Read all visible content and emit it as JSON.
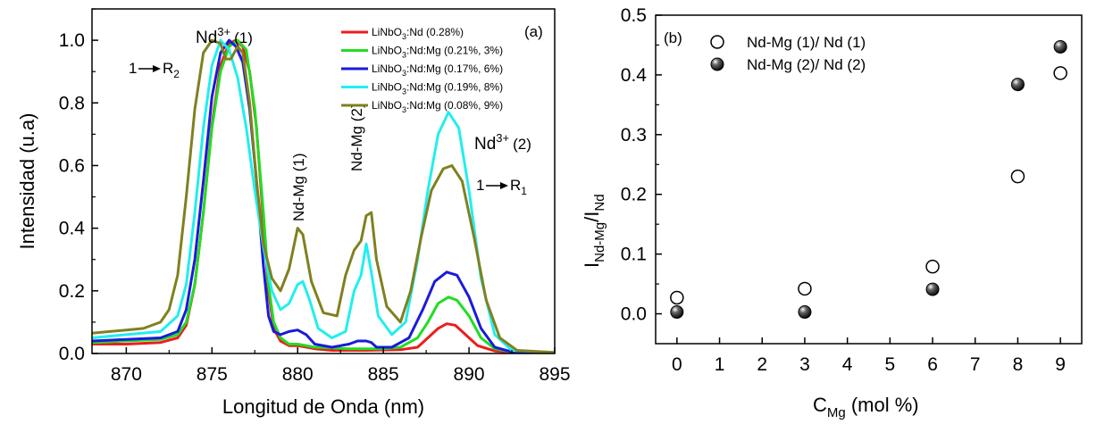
{
  "chart_data": [
    {
      "type": "line",
      "panel_label": "(a)",
      "xlabel": "Longitud de Onda (nm)",
      "ylabel": "Intensidad (u.a)",
      "xlim": [
        868,
        895
      ],
      "ylim": [
        0,
        1.1
      ],
      "x_ticks": [
        870,
        875,
        880,
        885,
        890,
        895
      ],
      "y_ticks": [
        "0.0",
        "0.2",
        "0.4",
        "0.6",
        "0.8",
        "1.0"
      ],
      "legend_position": "top-right",
      "annotations": {
        "nd1": "(1)",
        "nd2": "(2)",
        "ndmg1": "Nd-Mg (1)",
        "ndmg2": "Nd-Mg (2)",
        "r2": "R",
        "r2_sub": "2",
        "r1": "R",
        "r1_sub": "1",
        "one": "1"
      },
      "series": [
        {
          "name": "LiNbO3:Nd (0.28%)",
          "label_main": "LiNbO",
          "label_sub": "3",
          "label_rest": ":Nd (0.28%)",
          "color": "#ee1c1c",
          "points": [
            [
              868,
              0.03
            ],
            [
              870,
              0.03
            ],
            [
              872,
              0.035
            ],
            [
              873,
              0.05
            ],
            [
              873.5,
              0.09
            ],
            [
              874,
              0.22
            ],
            [
              874.5,
              0.45
            ],
            [
              875,
              0.73
            ],
            [
              875.5,
              0.92
            ],
            [
              876,
              0.99
            ],
            [
              876.4,
              1.0
            ],
            [
              876.8,
              0.98
            ],
            [
              877.2,
              0.9
            ],
            [
              877.6,
              0.72
            ],
            [
              878,
              0.42
            ],
            [
              878.3,
              0.2
            ],
            [
              878.6,
              0.08
            ],
            [
              879,
              0.04
            ],
            [
              879.5,
              0.025
            ],
            [
              880,
              0.025
            ],
            [
              881,
              0.015
            ],
            [
              882,
              0.01
            ],
            [
              884,
              0.01
            ],
            [
              886,
              0.012
            ],
            [
              887,
              0.02
            ],
            [
              887.6,
              0.05
            ],
            [
              888.2,
              0.08
            ],
            [
              888.7,
              0.095
            ],
            [
              889.2,
              0.09
            ],
            [
              889.8,
              0.06
            ],
            [
              890.5,
              0.025
            ],
            [
              891.5,
              0.008
            ],
            [
              892.5,
              0.003
            ],
            [
              895,
              0.002
            ]
          ]
        },
        {
          "name": "LiNbO3:Nd:Mg (0.21%, 3%)",
          "label_main": "LiNbO",
          "label_sub": "3",
          "label_rest": ":Nd:Mg (0.21%, 3%)",
          "color": "#22dd22",
          "points": [
            [
              868,
              0.035
            ],
            [
              870,
              0.04
            ],
            [
              872,
              0.045
            ],
            [
              873,
              0.06
            ],
            [
              873.5,
              0.1
            ],
            [
              874,
              0.22
            ],
            [
              874.5,
              0.45
            ],
            [
              875,
              0.72
            ],
            [
              875.5,
              0.9
            ],
            [
              876,
              0.98
            ],
            [
              876.5,
              1.0
            ],
            [
              877,
              0.97
            ],
            [
              877.5,
              0.78
            ],
            [
              878,
              0.45
            ],
            [
              878.3,
              0.22
            ],
            [
              878.6,
              0.1
            ],
            [
              879,
              0.05
            ],
            [
              879.5,
              0.03
            ],
            [
              880,
              0.03
            ],
            [
              881,
              0.02
            ],
            [
              883,
              0.015
            ],
            [
              885,
              0.015
            ],
            [
              886,
              0.02
            ],
            [
              887,
              0.05
            ],
            [
              887.6,
              0.1
            ],
            [
              888.2,
              0.16
            ],
            [
              888.8,
              0.18
            ],
            [
              889.3,
              0.17
            ],
            [
              890,
              0.12
            ],
            [
              890.7,
              0.05
            ],
            [
              891.5,
              0.015
            ],
            [
              892.5,
              0.005
            ],
            [
              895,
              0.002
            ]
          ]
        },
        {
          "name": "LiNbO3:Nd:Mg (0.17%, 6%)",
          "label_main": "LiNbO",
          "label_sub": "3",
          "label_rest": ":Nd:Mg (0.17%, 6%)",
          "color": "#1a1adc",
          "points": [
            [
              868,
              0.04
            ],
            [
              870,
              0.045
            ],
            [
              872,
              0.05
            ],
            [
              873,
              0.07
            ],
            [
              873.5,
              0.14
            ],
            [
              874,
              0.3
            ],
            [
              874.5,
              0.55
            ],
            [
              875,
              0.82
            ],
            [
              875.5,
              0.96
            ],
            [
              876,
              1.0
            ],
            [
              876.4,
              0.98
            ],
            [
              876.8,
              0.93
            ],
            [
              877.2,
              0.78
            ],
            [
              877.6,
              0.55
            ],
            [
              878,
              0.28
            ],
            [
              878.3,
              0.12
            ],
            [
              878.6,
              0.07
            ],
            [
              879,
              0.06
            ],
            [
              879.5,
              0.07
            ],
            [
              880,
              0.075
            ],
            [
              880.5,
              0.06
            ],
            [
              881,
              0.03
            ],
            [
              882,
              0.02
            ],
            [
              883,
              0.03
            ],
            [
              883.5,
              0.04
            ],
            [
              884,
              0.04
            ],
            [
              884.3,
              0.035
            ],
            [
              884.6,
              0.02
            ],
            [
              885.5,
              0.02
            ],
            [
              886.5,
              0.05
            ],
            [
              887.3,
              0.14
            ],
            [
              888,
              0.23
            ],
            [
              888.7,
              0.26
            ],
            [
              889.3,
              0.25
            ],
            [
              890,
              0.18
            ],
            [
              890.7,
              0.08
            ],
            [
              891.5,
              0.02
            ],
            [
              892.5,
              0.005
            ],
            [
              895,
              0.003
            ]
          ]
        },
        {
          "name": "LiNbO3:Nd:Mg (0.19%, 8%)",
          "label_main": "LiNbO",
          "label_sub": "3",
          "label_rest": ":Nd:Mg (0.19%, 8%)",
          "color": "#22eeee",
          "points": [
            [
              868,
              0.05
            ],
            [
              870,
              0.06
            ],
            [
              872,
              0.07
            ],
            [
              873,
              0.12
            ],
            [
              873.5,
              0.22
            ],
            [
              874,
              0.45
            ],
            [
              874.5,
              0.72
            ],
            [
              875,
              0.92
            ],
            [
              875.5,
              1.0
            ],
            [
              876,
              0.97
            ],
            [
              876.5,
              0.88
            ],
            [
              877,
              0.72
            ],
            [
              877.5,
              0.52
            ],
            [
              878,
              0.34
            ],
            [
              878.5,
              0.2
            ],
            [
              879,
              0.14
            ],
            [
              879.5,
              0.16
            ],
            [
              880,
              0.22
            ],
            [
              880.3,
              0.23
            ],
            [
              880.7,
              0.17
            ],
            [
              881.2,
              0.08
            ],
            [
              882,
              0.05
            ],
            [
              882.8,
              0.07
            ],
            [
              883.3,
              0.2
            ],
            [
              883.7,
              0.25
            ],
            [
              884,
              0.35
            ],
            [
              884.3,
              0.26
            ],
            [
              884.7,
              0.12
            ],
            [
              885.5,
              0.06
            ],
            [
              886.3,
              0.1
            ],
            [
              887,
              0.3
            ],
            [
              887.6,
              0.52
            ],
            [
              888.2,
              0.7
            ],
            [
              888.8,
              0.77
            ],
            [
              889.4,
              0.72
            ],
            [
              890,
              0.52
            ],
            [
              890.7,
              0.24
            ],
            [
              891.5,
              0.06
            ],
            [
              892.5,
              0.01
            ],
            [
              895,
              0.003
            ]
          ]
        },
        {
          "name": "LiNbO3:Nd:Mg (0.08%, 9%)",
          "label_main": "LiNbO",
          "label_sub": "3",
          "label_rest": ":Nd:Mg (0.08%, 9%)",
          "color": "#808020",
          "points": [
            [
              868,
              0.065
            ],
            [
              870,
              0.075
            ],
            [
              871,
              0.08
            ],
            [
              872,
              0.1
            ],
            [
              872.5,
              0.14
            ],
            [
              873,
              0.25
            ],
            [
              873.5,
              0.5
            ],
            [
              874,
              0.78
            ],
            [
              874.5,
              0.96
            ],
            [
              875,
              1.0
            ],
            [
              875.5,
              0.99
            ],
            [
              875.8,
              0.94
            ],
            [
              876.1,
              0.94
            ],
            [
              876.5,
              0.98
            ],
            [
              876.8,
              0.96
            ],
            [
              877.2,
              0.8
            ],
            [
              877.6,
              0.55
            ],
            [
              878,
              0.35
            ],
            [
              878.5,
              0.24
            ],
            [
              879,
              0.2
            ],
            [
              879.5,
              0.27
            ],
            [
              880,
              0.4
            ],
            [
              880.3,
              0.38
            ],
            [
              880.8,
              0.23
            ],
            [
              881.5,
              0.13
            ],
            [
              882.3,
              0.12
            ],
            [
              882.8,
              0.25
            ],
            [
              883.3,
              0.33
            ],
            [
              883.7,
              0.36
            ],
            [
              884,
              0.44
            ],
            [
              884.3,
              0.45
            ],
            [
              884.6,
              0.3
            ],
            [
              885.2,
              0.15
            ],
            [
              886,
              0.1
            ],
            [
              886.6,
              0.2
            ],
            [
              887.2,
              0.37
            ],
            [
              887.8,
              0.52
            ],
            [
              888.5,
              0.59
            ],
            [
              889,
              0.6
            ],
            [
              889.6,
              0.55
            ],
            [
              890.3,
              0.37
            ],
            [
              891,
              0.17
            ],
            [
              891.8,
              0.05
            ],
            [
              892.8,
              0.01
            ],
            [
              895,
              0.003
            ]
          ]
        }
      ]
    },
    {
      "type": "scatter",
      "panel_label": "(b)",
      "xlabel": "C",
      "xlabel_sub": "Mg",
      "xlabel_rest": " (mol %)",
      "ylabel": "I",
      "ylabel_sub": "Nd-Mg",
      "ylabel_rest": "/I",
      "ylabel_sub2": "Nd",
      "xlim": [
        -0.5,
        9.5
      ],
      "ylim": [
        -0.05,
        0.5
      ],
      "x_ticks": [
        "0",
        "1",
        "2",
        "3",
        "4",
        "5",
        "6",
        "7",
        "8",
        "9"
      ],
      "y_ticks": [
        "0.0",
        "0.1",
        "0.2",
        "0.3",
        "0.4",
        "0.5"
      ],
      "legend_position": "top-left",
      "series": [
        {
          "name": "Nd-Mg (1)/ Nd (1)",
          "marker": "open-circle",
          "x": [
            0,
            3,
            6,
            8,
            9
          ],
          "y": [
            0.027,
            0.042,
            0.079,
            0.23,
            0.403
          ]
        },
        {
          "name": "Nd-Mg (2)/ Nd (2)",
          "marker": "filled-circle",
          "x": [
            0,
            3,
            6,
            8,
            9
          ],
          "y": [
            0.003,
            0.003,
            0.041,
            0.384,
            0.447
          ]
        }
      ]
    }
  ]
}
